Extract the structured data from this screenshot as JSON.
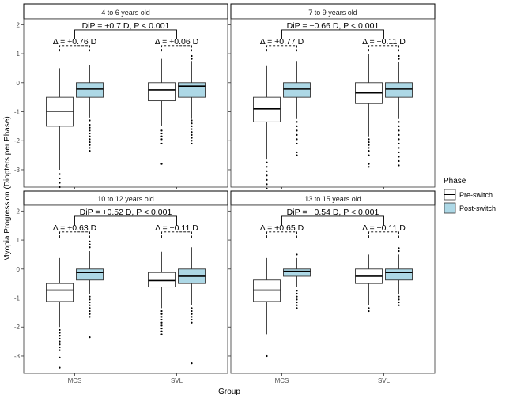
{
  "chart_data": {
    "type": "boxplot",
    "xlabel": "Group",
    "ylabel": "Myopia Progression (Diopters per Phase)",
    "ylim": [
      -3.6,
      2.2
    ],
    "yticks": [
      -3,
      -2,
      -1,
      0,
      1,
      2
    ],
    "categories": [
      "MCS",
      "SVL"
    ],
    "legend": {
      "title": "Phase",
      "position": "right",
      "entries": [
        {
          "name": "Pre-switch",
          "color": "#ffffff"
        },
        {
          "name": "Post-switch",
          "color": "#add8e6"
        }
      ]
    },
    "panels": [
      {
        "title": "4 to 6 years old",
        "dip_label": "DiP = +0.7 D, P < 0.001",
        "boxes": [
          {
            "group": "MCS",
            "phase": "Pre-switch",
            "whisker_low": -3.0,
            "q1": -1.5,
            "median": -0.98,
            "q3": -0.5,
            "whisker_high": 0.5,
            "outliers": [
              -3.15,
              -3.3,
              -3.45,
              -3.6
            ]
          },
          {
            "group": "MCS",
            "phase": "Post-switch",
            "whisker_low": -1.2,
            "q1": -0.5,
            "median": -0.22,
            "q3": 0.0,
            "whisker_high": 0.62,
            "outliers": [
              -1.3,
              -1.45,
              -1.55,
              -1.65,
              -1.75,
              -1.85,
              -1.95,
              -2.05,
              -2.15,
              -2.25,
              -2.35
            ]
          },
          {
            "group": "SVL",
            "phase": "Pre-switch",
            "whisker_low": -1.5,
            "q1": -0.62,
            "median": -0.25,
            "q3": 0.0,
            "whisker_high": 0.82,
            "outliers": [
              -1.65,
              -1.75,
              -1.85,
              -1.95,
              -2.1,
              -2.8
            ]
          },
          {
            "group": "SVL",
            "phase": "Post-switch",
            "whisker_low": -1.25,
            "q1": -0.5,
            "median": -0.12,
            "q3": 0.0,
            "whisker_high": 0.75,
            "outliers": [
              0.82,
              0.92,
              -1.3,
              -1.4,
              -1.5,
              -1.6,
              -1.7,
              -1.8,
              -1.9,
              -2.0,
              -2.1
            ]
          }
        ],
        "annotations": [
          {
            "group": "MCS",
            "label": "Δ = +0.76 D"
          },
          {
            "group": "SVL",
            "label": "Δ = +0.06 D"
          }
        ]
      },
      {
        "title": "7 to 9 years old",
        "dip_label": "DiP = +0.66 D, P < 0.001",
        "boxes": [
          {
            "group": "MCS",
            "phase": "Pre-switch",
            "whisker_low": -2.65,
            "q1": -1.35,
            "median": -0.9,
            "q3": -0.5,
            "whisker_high": 0.6,
            "outliers": [
              -2.75,
              -2.9,
              -3.05,
              -3.2,
              -3.35,
              -3.5,
              -3.65
            ]
          },
          {
            "group": "MCS",
            "phase": "Post-switch",
            "whisker_low": -1.25,
            "q1": -0.5,
            "median": -0.22,
            "q3": 0.0,
            "whisker_high": 0.75,
            "outliers": [
              -1.35,
              -1.5,
              -1.65,
              -1.8,
              -1.95,
              -2.1,
              -2.4,
              -2.5
            ]
          },
          {
            "group": "SVL",
            "phase": "Pre-switch",
            "whisker_low": -1.85,
            "q1": -0.72,
            "median": -0.35,
            "q3": 0.0,
            "whisker_high": 1.0,
            "outliers": [
              -1.95,
              -2.05,
              -2.15,
              -2.25,
              -2.35,
              -2.5,
              -2.8,
              -2.9
            ]
          },
          {
            "group": "SVL",
            "phase": "Post-switch",
            "whisker_low": -1.25,
            "q1": -0.5,
            "median": -0.22,
            "q3": 0.0,
            "whisker_high": 0.72,
            "outliers": [
              0.82,
              0.92,
              -1.35,
              -1.5,
              -1.65,
              -1.8,
              -1.95,
              -2.1,
              -2.25,
              -2.4,
              -2.55,
              -2.7,
              -2.85
            ]
          }
        ],
        "annotations": [
          {
            "group": "MCS",
            "label": "Δ = +0.77 D"
          },
          {
            "group": "SVL",
            "label": "Δ = +0.11 D"
          }
        ]
      },
      {
        "title": "10 to 12 years old",
        "dip_label": "DiP = +0.52 D, P < 0.001",
        "boxes": [
          {
            "group": "MCS",
            "phase": "Pre-switch",
            "whisker_low": -2.0,
            "q1": -1.12,
            "median": -0.73,
            "q3": -0.5,
            "whisker_high": 0.38,
            "outliers": [
              -2.1,
              -2.2,
              -2.3,
              -2.4,
              -2.5,
              -2.6,
              -2.7,
              -2.8,
              -3.05,
              -3.4
            ]
          },
          {
            "group": "MCS",
            "phase": "Post-switch",
            "whisker_low": -0.85,
            "q1": -0.38,
            "median": -0.12,
            "q3": 0.0,
            "whisker_high": 0.62,
            "outliers": [
              0.75,
              0.85,
              0.95,
              -0.95,
              -1.05,
              -1.15,
              -1.25,
              -1.35,
              -1.45,
              -1.55,
              -1.65,
              -2.35
            ]
          },
          {
            "group": "SVL",
            "phase": "Pre-switch",
            "whisker_low": -1.35,
            "q1": -0.62,
            "median": -0.4,
            "q3": -0.12,
            "whisker_high": 0.6,
            "outliers": [
              -1.45,
              -1.55,
              -1.65,
              -1.75,
              -1.85,
              -1.95,
              -2.05,
              -2.15,
              -2.25
            ]
          },
          {
            "group": "SVL",
            "phase": "Post-switch",
            "whisker_low": -1.25,
            "q1": -0.5,
            "median": -0.25,
            "q3": 0.0,
            "whisker_high": 0.75,
            "outliers": [
              -1.35,
              -1.45,
              -1.55,
              -1.65,
              -1.75,
              -1.85,
              -3.25
            ]
          }
        ],
        "annotations": [
          {
            "group": "MCS",
            "label": "Δ = +0.63 D"
          },
          {
            "group": "SVL",
            "label": "Δ = +0.11 D"
          }
        ]
      },
      {
        "title": "13 to 15 years old",
        "dip_label": "DiP = +0.54 D, P < 0.001",
        "boxes": [
          {
            "group": "MCS",
            "phase": "Pre-switch",
            "whisker_low": -2.25,
            "q1": -1.12,
            "median": -0.73,
            "q3": -0.38,
            "whisker_high": 0.38,
            "outliers": [
              -3.0
            ]
          },
          {
            "group": "MCS",
            "phase": "Post-switch",
            "whisker_low": -0.62,
            "q1": -0.25,
            "median": -0.08,
            "q3": 0.0,
            "whisker_high": 0.38,
            "outliers": [
              0.5,
              -0.75,
              -0.85,
              -0.95,
              -1.05,
              -1.15,
              -1.25,
              -1.35
            ]
          },
          {
            "group": "SVL",
            "phase": "Pre-switch",
            "whisker_low": -1.25,
            "q1": -0.5,
            "median": -0.25,
            "q3": 0.0,
            "whisker_high": 0.5,
            "outliers": [
              -1.35,
              -1.45
            ]
          },
          {
            "group": "SVL",
            "phase": "Post-switch",
            "whisker_low": -0.88,
            "q1": -0.38,
            "median": -0.12,
            "q3": 0.0,
            "whisker_high": 0.5,
            "outliers": [
              0.62,
              0.72,
              -0.95,
              -1.05,
              -1.15,
              -1.25
            ]
          }
        ],
        "annotations": [
          {
            "group": "MCS",
            "label": "Δ = +0.65 D"
          },
          {
            "group": "SVL",
            "label": "Δ = +0.11 D"
          }
        ]
      }
    ]
  }
}
